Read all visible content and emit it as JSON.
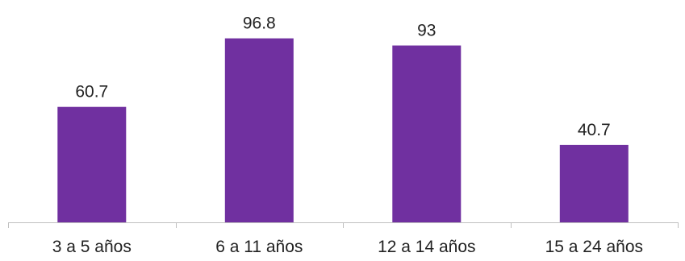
{
  "chart_data": {
    "type": "bar",
    "categories": [
      "3 a 5 años",
      "6 a 11 años",
      "12 a 14 años",
      "15 a 24 años"
    ],
    "values": [
      60.7,
      96.8,
      93,
      40.7
    ],
    "data_labels": [
      "60.7",
      "96.8",
      "93",
      "40.7"
    ],
    "title": "",
    "xlabel": "",
    "ylabel": "",
    "ylim": [
      0,
      100
    ],
    "grid": false,
    "legend": "none",
    "bar_color": "#7030A0",
    "axis_color": "#BFBFBF"
  }
}
